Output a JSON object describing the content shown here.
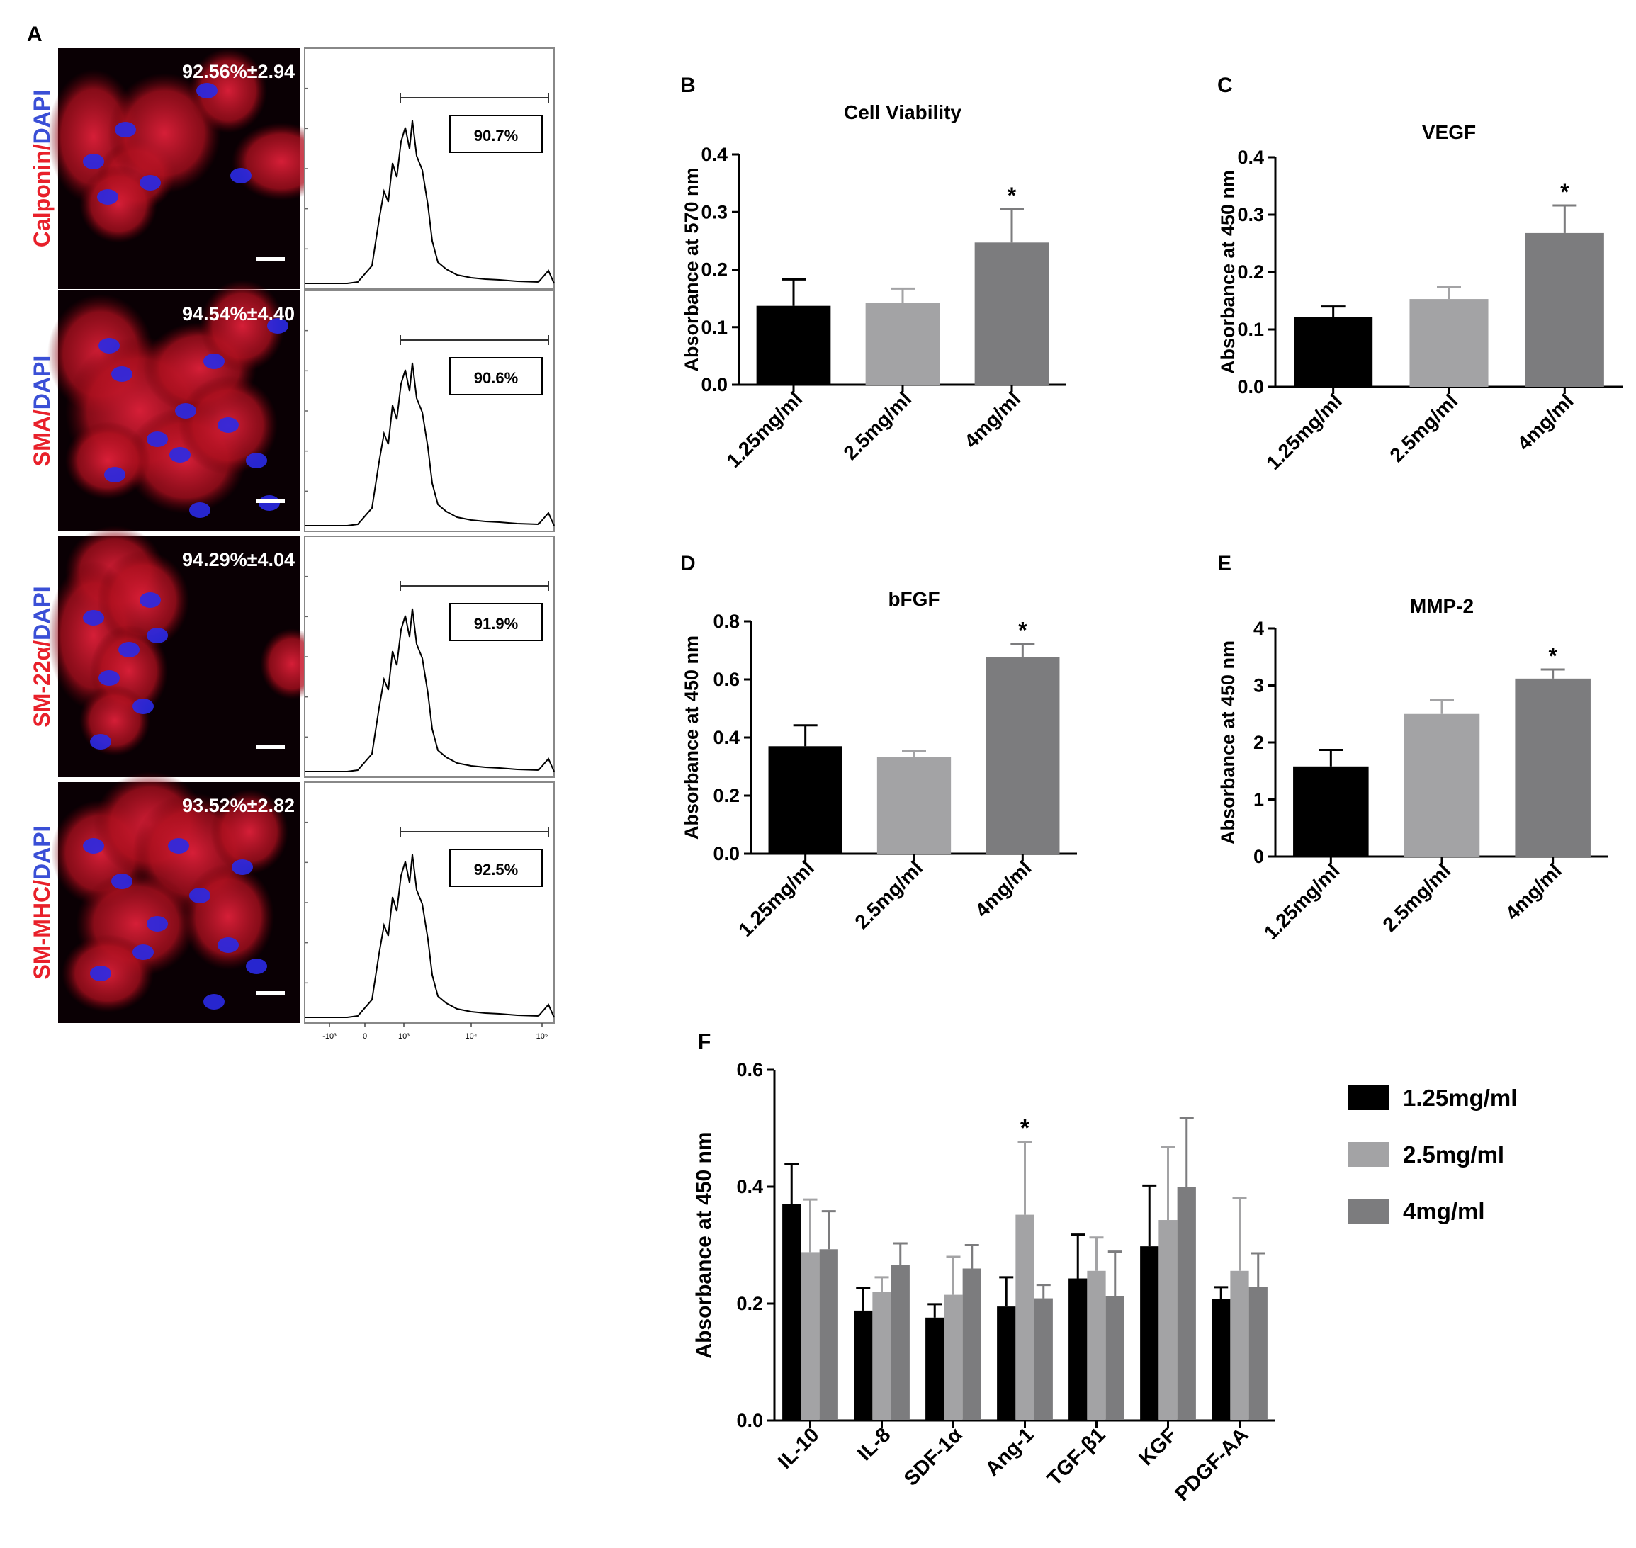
{
  "panel_letters": [
    "A",
    "B",
    "C",
    "D",
    "E",
    "F"
  ],
  "panel_a": {
    "rows": [
      {
        "marker": "Calponin",
        "counterstain": "DAPI",
        "separator": "/",
        "percent": "92.56%±2.94",
        "flow_gate": "90.7%"
      },
      {
        "marker": "SMA",
        "counterstain": "DAPI",
        "separator": "/",
        "percent": "94.54%±4.40",
        "flow_gate": "90.6%"
      },
      {
        "marker": "SM-22α",
        "counterstain": "DAPI",
        "separator": "/",
        "percent": "94.29%±4.04",
        "flow_gate": "91.9%"
      },
      {
        "marker": "SM-MHC",
        "counterstain": "DAPI",
        "separator": "/",
        "percent": "93.52%±2.82",
        "flow_gate": "92.5%"
      }
    ],
    "flow_axis_ticks": [
      "-10³",
      "0",
      "10³",
      "10⁴",
      "10⁵"
    ],
    "colors": {
      "marker": "#e8202a",
      "dapi": "#3a4fd6",
      "cell_red": "#d2142c",
      "nucleus": "#2a2ae6"
    }
  },
  "chart_data": [
    {
      "panel": "B",
      "type": "bar",
      "title": "Cell Viability",
      "ylabel": "Absorbance at 570 nm",
      "categories": [
        "1.25mg/ml",
        "2.5mg/ml",
        "4mg/ml"
      ],
      "values": [
        0.137,
        0.142,
        0.247
      ],
      "errors": [
        0.046,
        0.025,
        0.058
      ],
      "significance": [
        "",
        "",
        "*"
      ],
      "ylim": [
        0,
        0.4
      ],
      "yticks": [
        "0.0",
        "0.1",
        "0.2",
        "0.3",
        "0.4"
      ]
    },
    {
      "panel": "C",
      "type": "bar",
      "title": "VEGF",
      "ylabel": "Absorbance at 450 nm",
      "categories": [
        "1.25mg/ml",
        "2.5mg/ml",
        "4mg/ml"
      ],
      "values": [
        0.122,
        0.153,
        0.268
      ],
      "errors": [
        0.018,
        0.021,
        0.048
      ],
      "significance": [
        "",
        "",
        "*"
      ],
      "ylim": [
        0,
        0.4
      ],
      "yticks": [
        "0.0",
        "0.1",
        "0.2",
        "0.3",
        "0.4"
      ]
    },
    {
      "panel": "D",
      "type": "bar",
      "title": "bFGF",
      "ylabel": "Absorbance at 450 nm",
      "categories": [
        "1.25mg/ml",
        "2.5mg/ml",
        "4mg/ml"
      ],
      "values": [
        0.37,
        0.332,
        0.678
      ],
      "errors": [
        0.072,
        0.023,
        0.045
      ],
      "significance": [
        "",
        "",
        "*"
      ],
      "ylim": [
        0,
        0.8
      ],
      "yticks": [
        "0.0",
        "0.2",
        "0.4",
        "0.6",
        "0.8"
      ]
    },
    {
      "panel": "E",
      "type": "bar",
      "title": "MMP-2",
      "ylabel": "Absorbance at 450 nm",
      "categories": [
        "1.25mg/ml",
        "2.5mg/ml",
        "4mg/ml"
      ],
      "values": [
        1.58,
        2.5,
        3.12
      ],
      "errors": [
        0.29,
        0.25,
        0.16
      ],
      "significance": [
        "",
        "",
        "*"
      ],
      "ylim": [
        0,
        4
      ],
      "yticks": [
        "0",
        "1",
        "2",
        "3",
        "4"
      ]
    },
    {
      "panel": "F",
      "type": "bar",
      "title": "",
      "ylabel": "Absorbance at 450 nm",
      "categories": [
        "IL-10",
        "IL-8",
        "SDF-1α",
        "Ang-1",
        "TGF-β1",
        "KGF",
        "PDGF-AA"
      ],
      "series": [
        {
          "name": "1.25mg/ml",
          "values": [
            0.37,
            0.188,
            0.176,
            0.195,
            0.243,
            0.298,
            0.208
          ],
          "errors": [
            0.069,
            0.038,
            0.023,
            0.05,
            0.075,
            0.104,
            0.02
          ]
        },
        {
          "name": "2.5mg/ml",
          "values": [
            0.288,
            0.22,
            0.215,
            0.352,
            0.256,
            0.343,
            0.256
          ],
          "errors": [
            0.09,
            0.025,
            0.065,
            0.125,
            0.057,
            0.125,
            0.125
          ]
        },
        {
          "name": "4mg/ml",
          "values": [
            0.293,
            0.266,
            0.26,
            0.209,
            0.213,
            0.4,
            0.228
          ],
          "errors": [
            0.065,
            0.037,
            0.04,
            0.023,
            0.076,
            0.117,
            0.058
          ]
        }
      ],
      "significance": [
        {
          "category": "Ang-1",
          "series": "2.5mg/ml",
          "mark": "*"
        }
      ],
      "ylim": [
        0,
        0.6
      ],
      "yticks": [
        "0.0",
        "0.2",
        "0.4",
        "0.6"
      ],
      "legend": "right"
    }
  ],
  "colors": {
    "series": [
      "#000000",
      "#a3a3a5",
      "#7c7c7e"
    ]
  }
}
